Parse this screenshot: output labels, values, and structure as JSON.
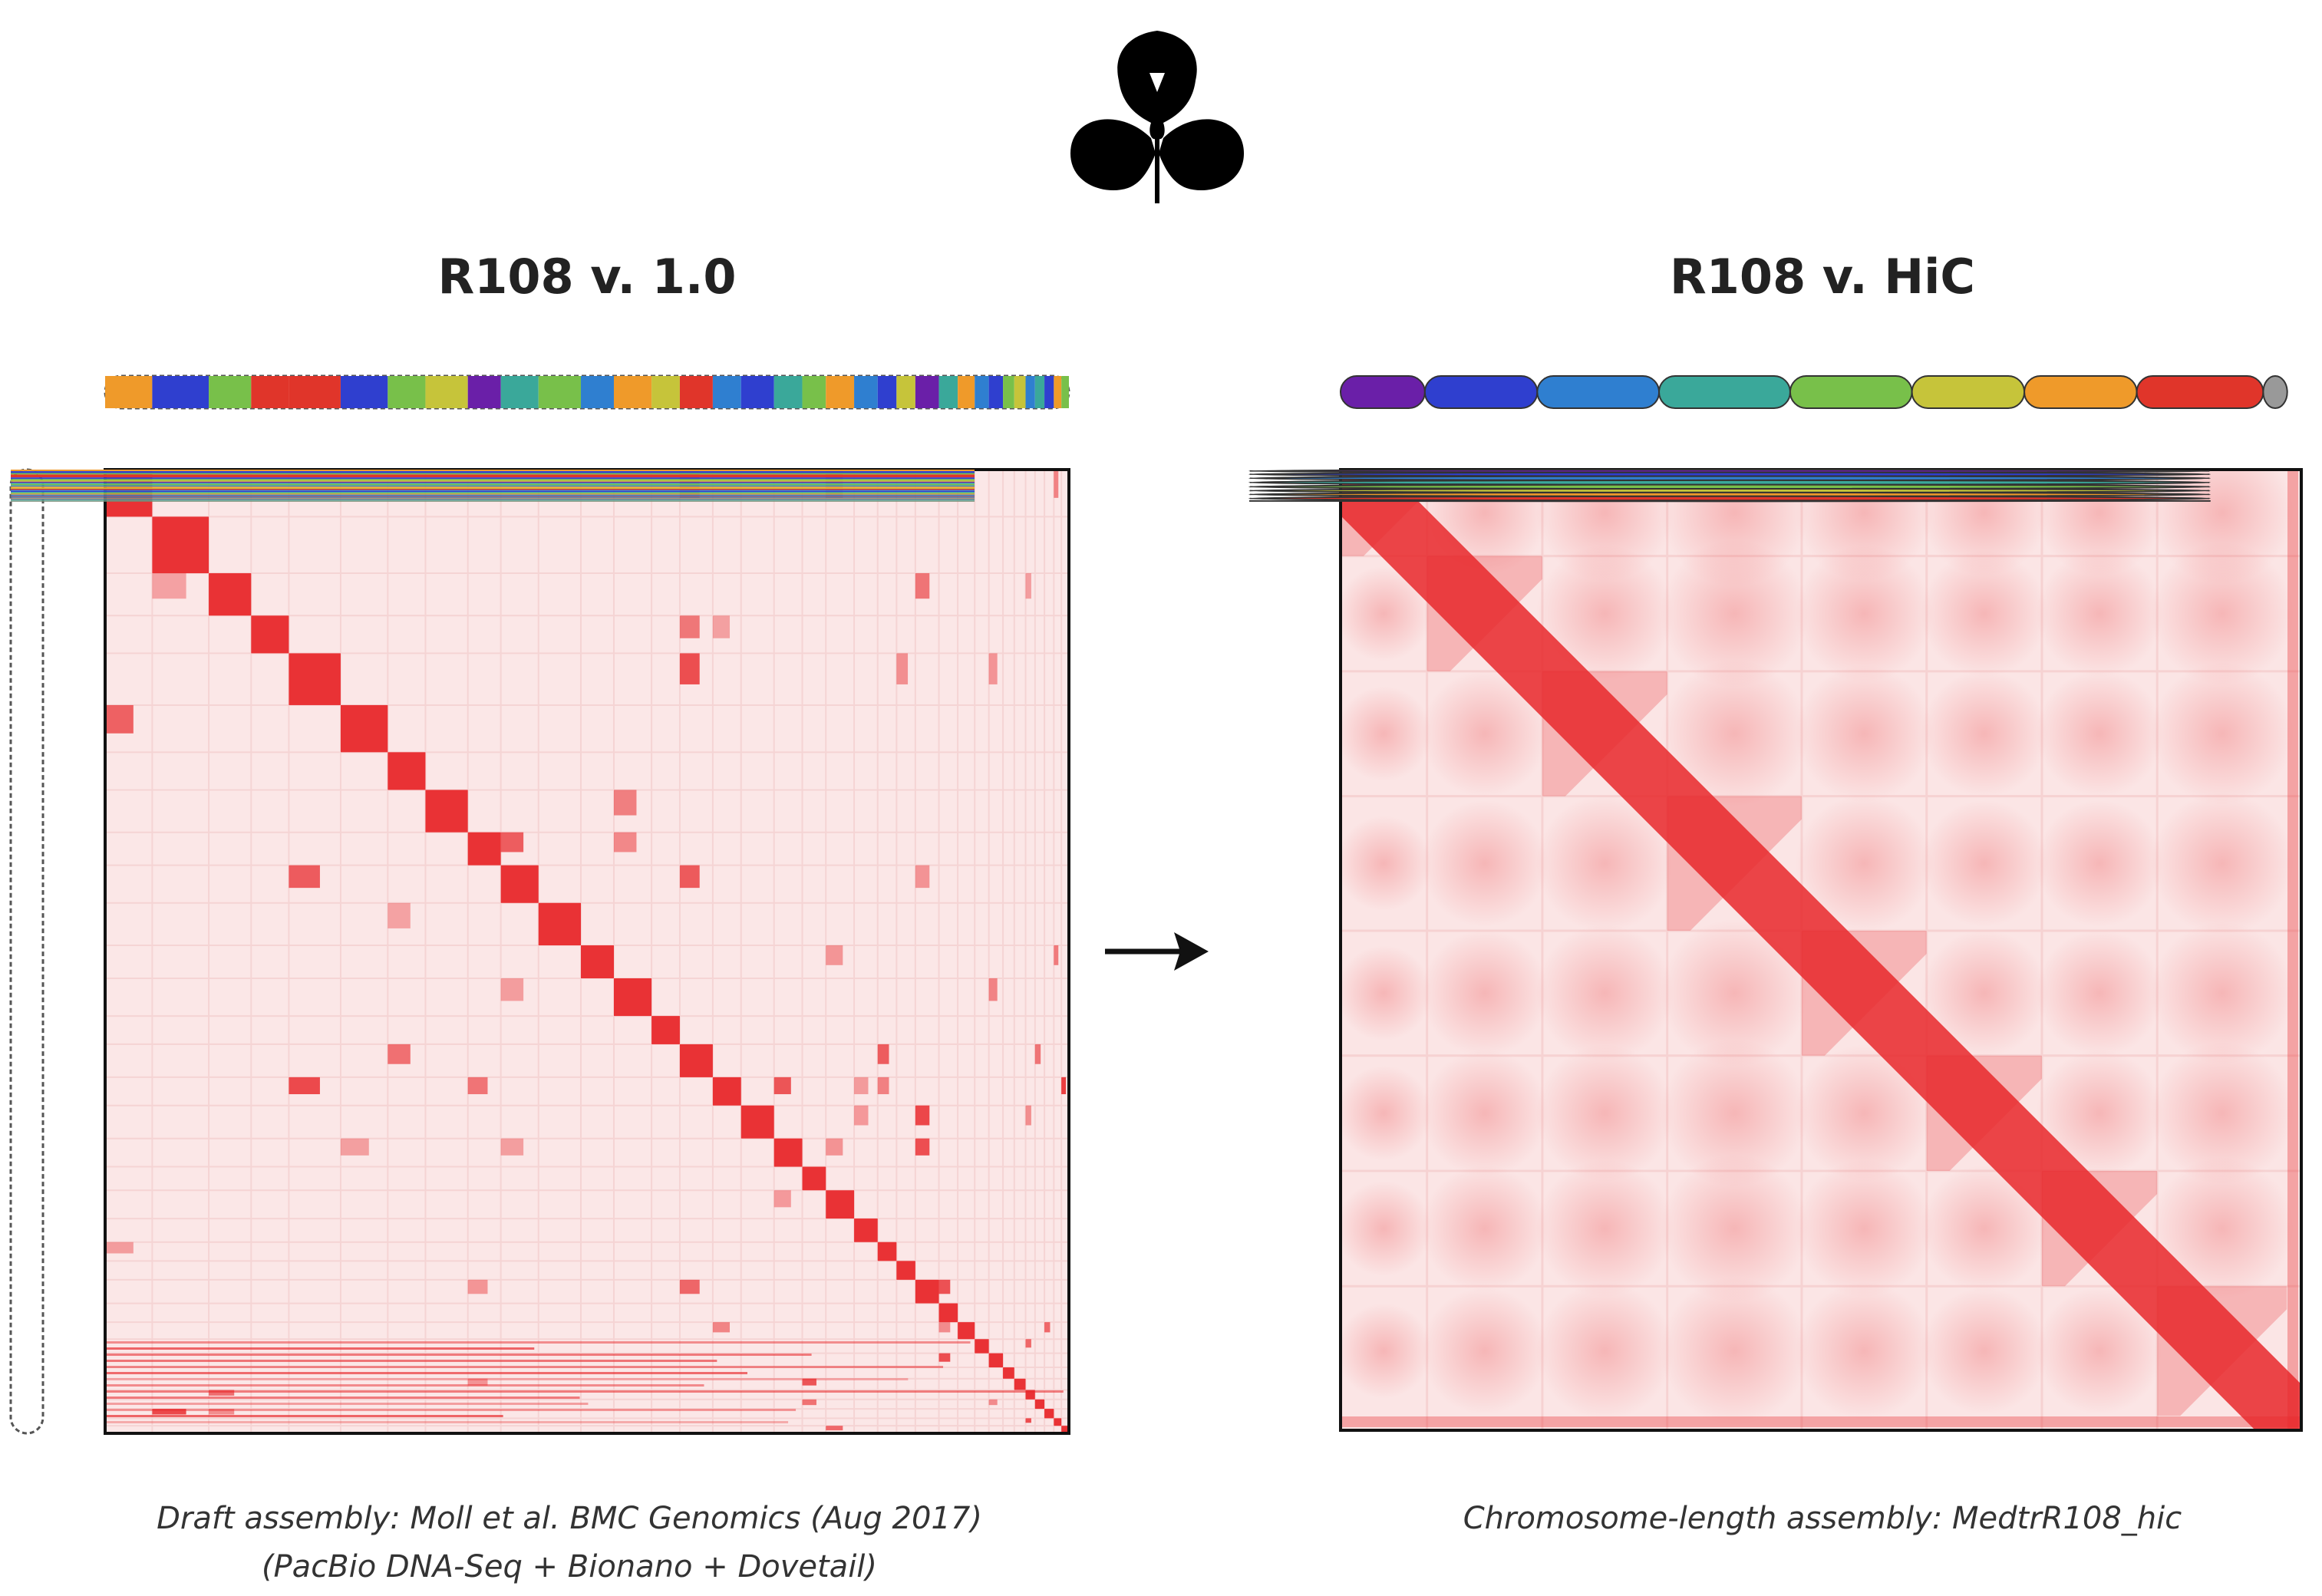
{
  "icon": "trefoil-leaf-icon",
  "left_panel": {
    "title": "R108 v. 1.0",
    "caption_line1": "Draft assembly: Moll et al. BMC Genomics (Aug 2017)",
    "caption_line2": "(PacBio DNA-Seq + Bionano + Dovetail)"
  },
  "right_panel": {
    "title": "R108 v. HiC",
    "caption_line1": "Chromosome-length assembly: MedtrR108_hic"
  },
  "arrow": "right-arrow-icon",
  "colors": {
    "heatmap_high": "#e8282b",
    "heatmap_low": "#fbe4e4",
    "chromosomes": [
      "#6a1fa8",
      "#2f3fcf",
      "#2f7fd0",
      "#3aa89a",
      "#78c04a",
      "#c6c43a",
      "#ef9a2a",
      "#e0352a"
    ],
    "unplaced": "#999999"
  },
  "chromosome_count": 8
}
